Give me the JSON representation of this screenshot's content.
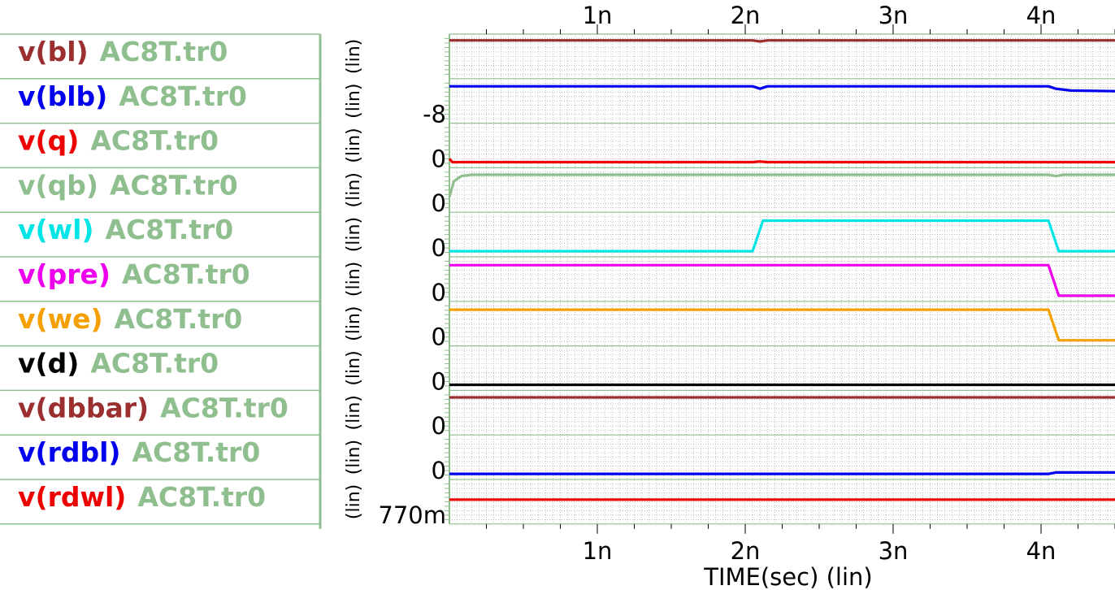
{
  "chart_data": {
    "type": "line",
    "xlabel": "TIME(sec) (lin)",
    "x_unit": "sec",
    "xlim": [
      0,
      4.5
    ],
    "x_ticks": [
      {
        "value": 1,
        "label": "1n"
      },
      {
        "value": 2,
        "label": "2n"
      },
      {
        "value": 3,
        "label": "3n"
      },
      {
        "value": 4,
        "label": "4n"
      }
    ],
    "grid": true,
    "legend_placement": "left",
    "dataset": "AC8T.tr0",
    "panels": [
      {
        "signal": "v(bl)",
        "color": "#9b2f2f",
        "yaxis_unit": "(lin)",
        "ylabel": "",
        "points": [
          [
            0,
            0.96
          ],
          [
            2.05,
            0.96
          ],
          [
            2.1,
            0.93
          ],
          [
            2.15,
            0.96
          ],
          [
            4.5,
            0.96
          ]
        ]
      },
      {
        "signal": "v(blb)",
        "color": "#0000ee",
        "yaxis_unit": "(lin)",
        "ylabel": "-8",
        "points": [
          [
            0,
            0.92
          ],
          [
            2.05,
            0.92
          ],
          [
            2.1,
            0.85
          ],
          [
            2.15,
            0.92
          ],
          [
            4.05,
            0.92
          ],
          [
            4.1,
            0.85
          ],
          [
            4.2,
            0.8
          ],
          [
            4.5,
            0.78
          ]
        ]
      },
      {
        "signal": "v(q)",
        "color": "#ee0000",
        "yaxis_unit": "(lin)",
        "ylabel": "0",
        "points": [
          [
            0,
            0.12
          ],
          [
            0.02,
            0.02
          ],
          [
            2.05,
            0.02
          ],
          [
            2.1,
            0.04
          ],
          [
            2.15,
            0.02
          ],
          [
            4.5,
            0.02
          ]
        ]
      },
      {
        "signal": "v(qb)",
        "color": "#8fbf8f",
        "yaxis_unit": "(lin)",
        "ylabel": "0",
        "points": [
          [
            0,
            0.3
          ],
          [
            0.03,
            0.75
          ],
          [
            0.08,
            0.9
          ],
          [
            0.15,
            0.94
          ],
          [
            4.05,
            0.94
          ],
          [
            4.1,
            0.9
          ],
          [
            4.15,
            0.94
          ],
          [
            4.5,
            0.94
          ]
        ]
      },
      {
        "signal": "v(wl)",
        "color": "#00e5e5",
        "yaxis_unit": "(lin)",
        "ylabel": "0",
        "points": [
          [
            0,
            0.02
          ],
          [
            2.05,
            0.02
          ],
          [
            2.12,
            0.9
          ],
          [
            4.05,
            0.9
          ],
          [
            4.12,
            0.02
          ],
          [
            4.5,
            0.02
          ]
        ]
      },
      {
        "signal": "v(pre)",
        "color": "#ee00ee",
        "yaxis_unit": "(lin)",
        "ylabel": "0",
        "points": [
          [
            0,
            0.9
          ],
          [
            4.05,
            0.9
          ],
          [
            4.12,
            0.02
          ],
          [
            4.5,
            0.02
          ]
        ]
      },
      {
        "signal": "v(we)",
        "color": "#f5a000",
        "yaxis_unit": "(lin)",
        "ylabel": "0",
        "points": [
          [
            0,
            0.9
          ],
          [
            4.05,
            0.9
          ],
          [
            4.12,
            0.02
          ],
          [
            4.5,
            0.02
          ]
        ]
      },
      {
        "signal": "v(d)",
        "color": "#000000",
        "yaxis_unit": "(lin)",
        "ylabel": "0",
        "points": [
          [
            0,
            0.02
          ],
          [
            4.5,
            0.02
          ]
        ]
      },
      {
        "signal": "v(dbbar)",
        "color": "#9b2f2f",
        "yaxis_unit": "(lin)",
        "ylabel": "0",
        "points": [
          [
            0,
            0.94
          ],
          [
            4.5,
            0.94
          ]
        ]
      },
      {
        "signal": "v(rdbl)",
        "color": "#0000ee",
        "yaxis_unit": "(lin)",
        "ylabel": "0",
        "points": [
          [
            0,
            0.02
          ],
          [
            4.05,
            0.02
          ],
          [
            4.1,
            0.06
          ],
          [
            4.5,
            0.06
          ]
        ]
      },
      {
        "signal": "v(rdwl)",
        "color": "#ee0000",
        "yaxis_unit": "(lin)",
        "ylabel": "770m",
        "points": [
          [
            0,
            0.56
          ],
          [
            4.5,
            0.56
          ]
        ]
      }
    ]
  },
  "colors": {
    "legend_border": "#8fbf8f",
    "dataset_label": "#8fbf8f",
    "grid": "#a8a8a8",
    "frame": "#8fbf8f",
    "tick": "#000000"
  }
}
